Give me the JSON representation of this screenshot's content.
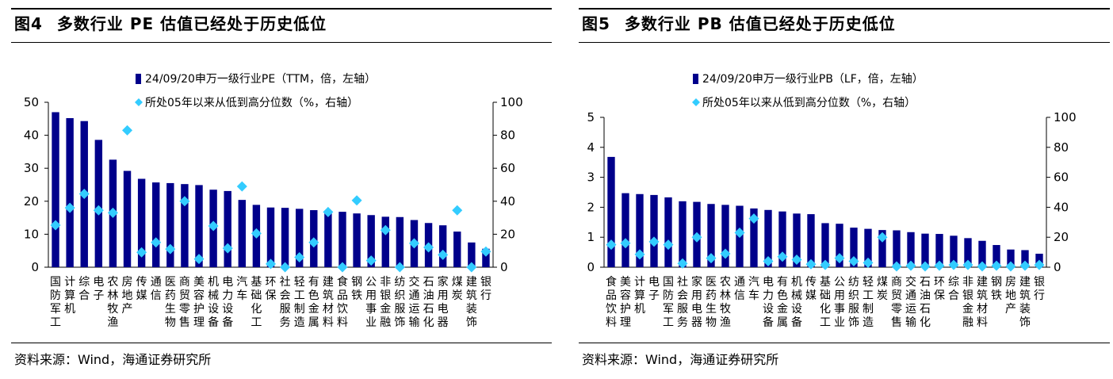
{
  "colors": {
    "bar": "#00008B",
    "marker": "#33CCFF",
    "axis": "#000000"
  },
  "left": {
    "figure_no": "图4",
    "title": "多数行业 PE 估值已经处于历史低位",
    "source": "资料来源：Wind，海通证券研究所"
  },
  "right": {
    "figure_no": "图5",
    "title": "多数行业 PB 估值已经处于历史低位",
    "source": "资料来源：Wind，海通证券研究所"
  },
  "chart_data": [
    {
      "type": "bar",
      "title": "多数行业 PE 估值已经处于历史低位",
      "categories": [
        "国防军工",
        "计算机",
        "综合",
        "电子",
        "农林牧渔",
        "房地产",
        "传媒",
        "通信",
        "医药生物",
        "商贸零售",
        "美容护理",
        "机械设备",
        "电力设备",
        "汽车",
        "基础化工",
        "环保",
        "社会服务",
        "轻工制造",
        "有色金属",
        "建筑材料",
        "食品饮料",
        "钢铁",
        "公用事业",
        "非银金融",
        "纺织服饰",
        "交通运输",
        "石油石化",
        "家用电器",
        "煤炭",
        "建筑装饰",
        "银行"
      ],
      "series": [
        {
          "name": "24/09/20申万一级行业PE（TTM，倍，左轴）",
          "kind": "bar",
          "axis": "left",
          "values": [
            47,
            45.2,
            44.3,
            38.6,
            32.6,
            29.2,
            26.8,
            25.7,
            25.5,
            25.2,
            24.9,
            23.5,
            23.1,
            20.4,
            18.9,
            18.1,
            18,
            17.7,
            17.3,
            17,
            16.8,
            16.3,
            15.8,
            15.3,
            15.2,
            14.3,
            13.4,
            12.7,
            10.8,
            7.5,
            5.6
          ]
        },
        {
          "name": "所处05年以来从低到高分位数（%，右轴）",
          "kind": "scatter",
          "axis": "right",
          "values": [
            25.5,
            36,
            44.5,
            34.5,
            33,
            83,
            9,
            15,
            11,
            40,
            5,
            25,
            11.5,
            49,
            20.5,
            2,
            0,
            6,
            15,
            33.5,
            0,
            40.5,
            4,
            22.5,
            0,
            14.5,
            12,
            7.5,
            34.5,
            0,
            9.5
          ]
        }
      ],
      "ylim_left": [
        0,
        50
      ],
      "yticks_left": [
        0,
        10,
        20,
        30,
        40,
        50
      ],
      "ylim_right": [
        0,
        100
      ],
      "yticks_right": [
        0,
        20,
        40,
        60,
        80,
        100
      ],
      "legend": "top-center",
      "grid": false
    },
    {
      "type": "bar",
      "title": "多数行业 PB 估值已经处于历史低位",
      "categories": [
        "食品饮料",
        "美容护理",
        "计算机",
        "电子",
        "国防军工",
        "社会服务",
        "家用电器",
        "医药生物",
        "农林牧渔",
        "通信",
        "汽车",
        "电力设备",
        "有色金属",
        "机械设备",
        "传媒",
        "基础化工",
        "公用事业",
        "纺织服饰",
        "轻工制造",
        "煤炭",
        "商贸零售",
        "交通运输",
        "石油石化",
        "环保",
        "综合",
        "非银金融",
        "建筑材料",
        "钢铁",
        "房地产",
        "建筑装饰",
        "银行"
      ],
      "series": [
        {
          "name": "24/09/20申万一级行业PB（LF，倍，左轴）",
          "kind": "bar",
          "axis": "left",
          "values": [
            3.68,
            2.47,
            2.44,
            2.41,
            2.33,
            2.2,
            2.18,
            2.11,
            2.08,
            2.05,
            1.96,
            1.91,
            1.86,
            1.79,
            1.77,
            1.47,
            1.45,
            1.32,
            1.28,
            1.24,
            1.23,
            1.17,
            1.12,
            1.11,
            1.05,
            0.97,
            0.88,
            0.74,
            0.59,
            0.57,
            0.45
          ]
        },
        {
          "name": "所处05年以来从低到高分位数（%，右轴）",
          "kind": "scatter",
          "axis": "right",
          "values": [
            15,
            16,
            8.5,
            17,
            15,
            2.5,
            20,
            6,
            9,
            23,
            32.5,
            4,
            7,
            5,
            2,
            1.5,
            6,
            4,
            3,
            20,
            0.5,
            1,
            0.5,
            1,
            1.5,
            1.5,
            0.5,
            1,
            0.5,
            1,
            1.5
          ]
        }
      ],
      "ylim_left": [
        0,
        5
      ],
      "yticks_left": [
        0,
        1,
        2,
        3,
        4,
        5
      ],
      "ylim_right": [
        0,
        100
      ],
      "yticks_right": [
        0,
        20,
        40,
        60,
        80,
        100
      ],
      "legend": "top-center",
      "grid": false
    }
  ]
}
